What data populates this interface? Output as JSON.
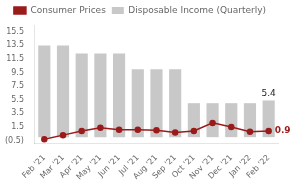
{
  "chart_data": {
    "type": "bar",
    "categories": [
      "Feb '21",
      "Mar '21",
      "Apr '21",
      "May '21",
      "Jun '21",
      "Jul '21",
      "Aug '21",
      "Sep '21",
      "Oct '21",
      "Nov '21",
      "Dec '21",
      "Jan '22",
      "Feb '22"
    ],
    "series": [
      {
        "name": "Disposable Income (Quarterly)",
        "type": "bar",
        "color": "#c8c8c8",
        "values": [
          13.5,
          13.5,
          12.3,
          12.3,
          12.3,
          10.0,
          10.0,
          10.0,
          5.0,
          5.0,
          5.0,
          5.0,
          5.4
        ]
      },
      {
        "name": "Consumer Prices",
        "type": "line",
        "color": "#9b1b1b",
        "marker": "circle",
        "values": [
          -0.3,
          0.3,
          0.9,
          1.4,
          1.1,
          1.1,
          1.0,
          0.7,
          0.9,
          2.1,
          1.5,
          0.8,
          0.9
        ]
      }
    ],
    "ylim": [
      -1.0,
      16.5
    ],
    "yticks": [
      {
        "value": -0.5,
        "label": "(0.5)"
      },
      1.5,
      3.5,
      5.5,
      7.5,
      9.5,
      11.5,
      13.5,
      15.5
    ],
    "annotations": [
      {
        "text": "5.4",
        "x": "Feb '22",
        "y": 5.4,
        "color": "#222222"
      },
      {
        "text": "0.9",
        "x": "Feb '22",
        "y": 0.9,
        "color": "#9b1b1b"
      }
    ],
    "legend": "top",
    "grid": false
  }
}
